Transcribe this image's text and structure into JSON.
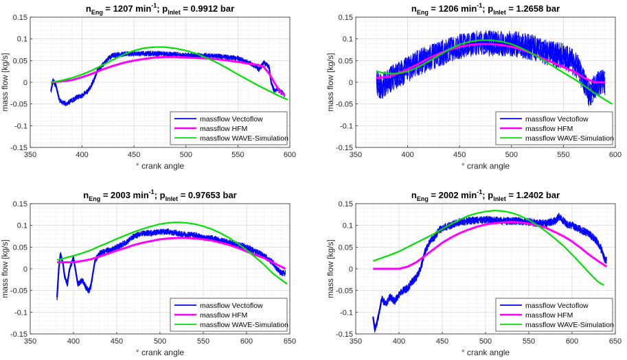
{
  "colors": {
    "vectoflow": "#0000ff",
    "hfm": "#ff00ff",
    "wave": "#00e000",
    "grid": "#e6e6e6",
    "axis": "#262626"
  },
  "chart_data": [
    {
      "type": "line",
      "title": {
        "pre": "n",
        "sub1": "Eng",
        "mid1": " = 1207 min",
        "sup": "-1",
        "mid2": "; p",
        "sub2": "Inlet",
        "post": " = 0.9912 bar"
      },
      "xlabel": "° crank angle",
      "ylabel": "mass flow [kg/s]",
      "xlim": [
        350,
        600
      ],
      "ylim": [
        -0.15,
        0.15
      ],
      "xticks": [
        350,
        400,
        450,
        500,
        550,
        600
      ],
      "yticks": [
        -0.15,
        -0.1,
        -0.05,
        0,
        0.05,
        0.1,
        0.15
      ],
      "ytick_labels": [
        "-0.15",
        "-0.1",
        "-0.05",
        "0",
        "0.05",
        "0.1",
        "0.15"
      ],
      "grid": true,
      "legend_position": "bottom-right",
      "series": [
        {
          "name": "massflow Vectoflow",
          "color": "#0000ff",
          "noise": 0.006,
          "x": [
            370,
            372,
            375,
            378,
            380,
            384,
            390,
            395,
            400,
            405,
            408,
            410,
            412,
            415,
            418,
            420,
            425,
            430,
            440,
            450,
            460,
            470,
            480,
            490,
            500,
            510,
            520,
            530,
            540,
            550,
            555,
            560,
            565,
            570,
            572,
            575,
            578,
            580,
            582,
            585,
            588,
            590,
            593,
            595
          ],
          "y": [
            -0.02,
            0.005,
            -0.01,
            -0.04,
            -0.045,
            -0.05,
            -0.042,
            -0.035,
            -0.03,
            -0.022,
            -0.012,
            0.0,
            0.008,
            0.03,
            0.035,
            0.04,
            0.055,
            0.062,
            0.065,
            0.066,
            0.066,
            0.066,
            0.065,
            0.064,
            0.062,
            0.062,
            0.061,
            0.06,
            0.058,
            0.055,
            0.05,
            0.045,
            0.04,
            0.03,
            0.035,
            0.045,
            0.04,
            0.035,
            0.0,
            -0.02,
            -0.015,
            -0.02,
            -0.025,
            -0.03
          ]
        },
        {
          "name": "massflow HFM",
          "color": "#ff00ff",
          "noise": 0.0,
          "x": [
            370,
            380,
            390,
            400,
            410,
            420,
            430,
            440,
            450,
            460,
            470,
            480,
            490,
            500,
            510,
            520,
            530,
            540,
            550,
            560,
            570,
            575,
            580,
            585,
            590,
            595
          ],
          "y": [
            0.0,
            0.002,
            0.005,
            0.012,
            0.02,
            0.03,
            0.038,
            0.045,
            0.05,
            0.054,
            0.057,
            0.058,
            0.058,
            0.057,
            0.056,
            0.055,
            0.053,
            0.05,
            0.047,
            0.043,
            0.04,
            0.035,
            0.02,
            0.0,
            -0.02,
            -0.03
          ]
        },
        {
          "name": "massflow WAVE-Simulation",
          "color": "#00e000",
          "noise": 0.0,
          "x": [
            370,
            380,
            390,
            400,
            410,
            420,
            430,
            440,
            450,
            460,
            470,
            480,
            490,
            500,
            510,
            520,
            530,
            540,
            550,
            560,
            570,
            580,
            590,
            598
          ],
          "y": [
            0.0,
            0.004,
            0.01,
            0.018,
            0.028,
            0.04,
            0.052,
            0.064,
            0.073,
            0.079,
            0.081,
            0.081,
            0.078,
            0.073,
            0.066,
            0.056,
            0.045,
            0.032,
            0.018,
            0.005,
            -0.008,
            -0.02,
            -0.032,
            -0.04
          ]
        }
      ]
    },
    {
      "type": "line",
      "title": {
        "pre": "n",
        "sub1": "Eng",
        "mid1": " = 1206 min",
        "sup": "-1",
        "mid2": "; p",
        "sub2": "Inlet",
        "post": " = 1.2658 bar"
      },
      "xlabel": "° crank angle",
      "ylabel": "mass flow [kg/s]",
      "xlim": [
        350,
        600
      ],
      "ylim": [
        -0.15,
        0.15
      ],
      "xticks": [
        350,
        400,
        450,
        500,
        550,
        600
      ],
      "yticks": [
        -0.15,
        -0.1,
        -0.05,
        0,
        0.05,
        0.1,
        0.15
      ],
      "ytick_labels": [
        "-0.15",
        "-0.1",
        "-0.05",
        "0",
        "0.05",
        "0.1",
        "0.15"
      ],
      "grid": true,
      "legend_position": "bottom-right",
      "series": [
        {
          "name": "massflow Vectoflow",
          "color": "#0000ff",
          "noise": 0.03,
          "x": [
            370,
            375,
            380,
            385,
            390,
            400,
            410,
            420,
            430,
            440,
            450,
            460,
            470,
            480,
            490,
            500,
            510,
            520,
            530,
            540,
            550,
            560,
            565,
            570,
            575,
            580,
            585,
            590
          ],
          "y": [
            0.0,
            -0.01,
            0.0,
            0.01,
            0.015,
            0.03,
            0.045,
            0.055,
            0.065,
            0.075,
            0.082,
            0.088,
            0.09,
            0.09,
            0.09,
            0.088,
            0.085,
            0.08,
            0.072,
            0.065,
            0.06,
            0.045,
            0.03,
            0.0,
            -0.03,
            -0.01,
            0.0,
            0.0
          ]
        },
        {
          "name": "massflow HFM",
          "color": "#ff00ff",
          "noise": 0.0,
          "x": [
            370,
            380,
            390,
            400,
            410,
            420,
            430,
            440,
            450,
            460,
            470,
            480,
            490,
            500,
            510,
            520,
            530,
            540,
            550,
            560,
            570,
            580,
            590
          ],
          "y": [
            0.01,
            0.012,
            0.02,
            0.03,
            0.042,
            0.055,
            0.066,
            0.075,
            0.082,
            0.086,
            0.088,
            0.088,
            0.086,
            0.082,
            0.075,
            0.066,
            0.055,
            0.045,
            0.035,
            0.025,
            0.01,
            0.0,
            0.0
          ]
        },
        {
          "name": "massflow WAVE-Simulation",
          "color": "#00e000",
          "noise": 0.0,
          "x": [
            370,
            380,
            390,
            400,
            410,
            420,
            430,
            440,
            450,
            460,
            470,
            480,
            490,
            500,
            510,
            520,
            530,
            540,
            550,
            560,
            570,
            580,
            590,
            597
          ],
          "y": [
            0.025,
            0.02,
            0.02,
            0.025,
            0.035,
            0.048,
            0.062,
            0.076,
            0.087,
            0.094,
            0.097,
            0.097,
            0.094,
            0.088,
            0.078,
            0.066,
            0.052,
            0.037,
            0.022,
            0.008,
            -0.008,
            -0.025,
            -0.04,
            -0.05
          ]
        }
      ]
    },
    {
      "type": "line",
      "title": {
        "pre": "n",
        "sub1": "Eng",
        "mid1": " = 2003 min",
        "sup": "-1",
        "mid2": "; p",
        "sub2": "Inlet",
        "post": " = 0.97653 bar"
      },
      "xlabel": "° crank angle",
      "ylabel": "mass flow [kg/s]",
      "xlim": [
        350,
        650
      ],
      "ylim": [
        -0.15,
        0.15
      ],
      "xticks": [
        350,
        400,
        450,
        500,
        550,
        600,
        650
      ],
      "yticks": [
        -0.15,
        -0.1,
        -0.05,
        0,
        0.05,
        0.1,
        0.15
      ],
      "ytick_labels": [
        "-0.15",
        "-0.1",
        "-0.05",
        "0",
        "0.05",
        "0.1",
        "0.15"
      ],
      "grid": true,
      "legend_position": "bottom-right",
      "series": [
        {
          "name": "massflow Vectoflow",
          "color": "#0000ff",
          "noise": 0.007,
          "x": [
            381,
            383,
            385,
            388,
            390,
            393,
            395,
            398,
            400,
            403,
            405,
            408,
            410,
            415,
            418,
            420,
            425,
            430,
            435,
            440,
            445,
            450,
            460,
            470,
            480,
            490,
            500,
            510,
            520,
            530,
            540,
            550,
            560,
            570,
            580,
            590,
            600,
            610,
            620,
            630,
            635,
            640,
            645
          ],
          "y": [
            -0.065,
            0.0,
            0.035,
            0.01,
            -0.02,
            -0.035,
            -0.005,
            0.015,
            0.025,
            -0.01,
            -0.035,
            -0.03,
            -0.025,
            -0.045,
            -0.05,
            -0.04,
            0.02,
            0.035,
            0.04,
            0.042,
            0.045,
            0.05,
            0.06,
            0.075,
            0.082,
            0.082,
            0.085,
            0.085,
            0.082,
            0.078,
            0.078,
            0.072,
            0.07,
            0.065,
            0.06,
            0.055,
            0.05,
            0.04,
            0.03,
            0.015,
            0.0,
            -0.01,
            -0.01
          ]
        },
        {
          "name": "massflow HFM",
          "color": "#ff00ff",
          "noise": 0.0,
          "x": [
            381,
            390,
            400,
            410,
            420,
            430,
            440,
            450,
            460,
            470,
            480,
            490,
            500,
            510,
            520,
            530,
            540,
            550,
            560,
            570,
            580,
            590,
            600,
            610,
            620,
            630,
            640,
            645
          ],
          "y": [
            0.015,
            0.015,
            0.015,
            0.018,
            0.022,
            0.028,
            0.035,
            0.042,
            0.048,
            0.055,
            0.06,
            0.064,
            0.068,
            0.07,
            0.071,
            0.071,
            0.07,
            0.068,
            0.065,
            0.06,
            0.055,
            0.048,
            0.04,
            0.032,
            0.025,
            0.015,
            0.005,
            0.0
          ]
        },
        {
          "name": "massflow WAVE-Simulation",
          "color": "#00e000",
          "noise": 0.0,
          "x": [
            381,
            390,
            400,
            410,
            420,
            430,
            440,
            450,
            460,
            470,
            480,
            490,
            500,
            510,
            520,
            530,
            540,
            550,
            560,
            570,
            580,
            590,
            600,
            610,
            620,
            630,
            640,
            647
          ],
          "y": [
            0.02,
            0.025,
            0.03,
            0.036,
            0.043,
            0.052,
            0.06,
            0.069,
            0.077,
            0.085,
            0.092,
            0.098,
            0.103,
            0.106,
            0.107,
            0.106,
            0.103,
            0.098,
            0.091,
            0.082,
            0.071,
            0.058,
            0.043,
            0.027,
            0.01,
            -0.01,
            -0.025,
            -0.035
          ]
        }
      ]
    },
    {
      "type": "line",
      "title": {
        "pre": "n",
        "sub1": "Eng",
        "mid1": " = 2002 min",
        "sup": "-1",
        "mid2": "; p",
        "sub2": "Inlet",
        "post": " = 1.2402 bar"
      },
      "xlabel": "° crank angle",
      "ylabel": "mass flow [kg/s]",
      "xlim": [
        350,
        650
      ],
      "ylim": [
        -0.15,
        0.15
      ],
      "xticks": [
        350,
        400,
        450,
        500,
        550,
        600,
        650
      ],
      "yticks": [
        -0.15,
        -0.1,
        -0.05,
        0,
        0.05,
        0.1,
        0.15
      ],
      "ytick_labels": [
        "-0.15",
        "-0.1",
        "-0.05",
        "0",
        "0.05",
        "0.1",
        "0.15"
      ],
      "grid": true,
      "legend_position": "bottom-right",
      "series": [
        {
          "name": "massflow Vectoflow",
          "color": "#0000ff",
          "noise": 0.009,
          "x": [
            370,
            372,
            375,
            378,
            380,
            385,
            390,
            395,
            400,
            405,
            410,
            415,
            420,
            425,
            430,
            435,
            440,
            445,
            450,
            460,
            470,
            480,
            490,
            500,
            510,
            520,
            530,
            540,
            550,
            560,
            570,
            580,
            585,
            590,
            595,
            600,
            610,
            620,
            630,
            635,
            638,
            640
          ],
          "y": [
            -0.11,
            -0.14,
            -0.12,
            -0.09,
            -0.07,
            -0.08,
            -0.065,
            -0.075,
            -0.06,
            -0.05,
            -0.045,
            -0.03,
            -0.02,
            0.0,
            0.04,
            0.06,
            0.07,
            0.085,
            0.095,
            0.1,
            0.108,
            0.11,
            0.112,
            0.113,
            0.112,
            0.11,
            0.11,
            0.11,
            0.108,
            0.105,
            0.105,
            0.11,
            0.12,
            0.11,
            0.1,
            0.1,
            0.09,
            0.08,
            0.06,
            0.04,
            0.02,
            0.02
          ]
        },
        {
          "name": "massflow HFM",
          "color": "#ff00ff",
          "noise": 0.0,
          "x": [
            370,
            380,
            390,
            400,
            410,
            420,
            430,
            440,
            450,
            460,
            470,
            480,
            490,
            500,
            510,
            520,
            530,
            540,
            550,
            560,
            570,
            580,
            590,
            600,
            610,
            620,
            630,
            640
          ],
          "y": [
            0.0,
            0.0,
            0.0,
            0.0,
            0.005,
            0.015,
            0.03,
            0.045,
            0.06,
            0.072,
            0.082,
            0.09,
            0.097,
            0.102,
            0.105,
            0.107,
            0.108,
            0.107,
            0.104,
            0.1,
            0.094,
            0.085,
            0.075,
            0.063,
            0.048,
            0.032,
            0.018,
            0.005
          ]
        },
        {
          "name": "massflow WAVE-Simulation",
          "color": "#00e000",
          "noise": 0.0,
          "x": [
            370,
            380,
            390,
            400,
            410,
            420,
            430,
            440,
            450,
            460,
            470,
            480,
            490,
            500,
            510,
            520,
            530,
            540,
            550,
            560,
            570,
            580,
            590,
            600,
            610,
            620,
            630,
            637
          ],
          "y": [
            0.018,
            0.025,
            0.032,
            0.04,
            0.05,
            0.06,
            0.07,
            0.08,
            0.092,
            0.103,
            0.113,
            0.122,
            0.128,
            0.132,
            0.134,
            0.133,
            0.129,
            0.122,
            0.112,
            0.1,
            0.086,
            0.07,
            0.053,
            0.033,
            0.012,
            -0.01,
            -0.03,
            -0.038
          ]
        }
      ]
    }
  ]
}
